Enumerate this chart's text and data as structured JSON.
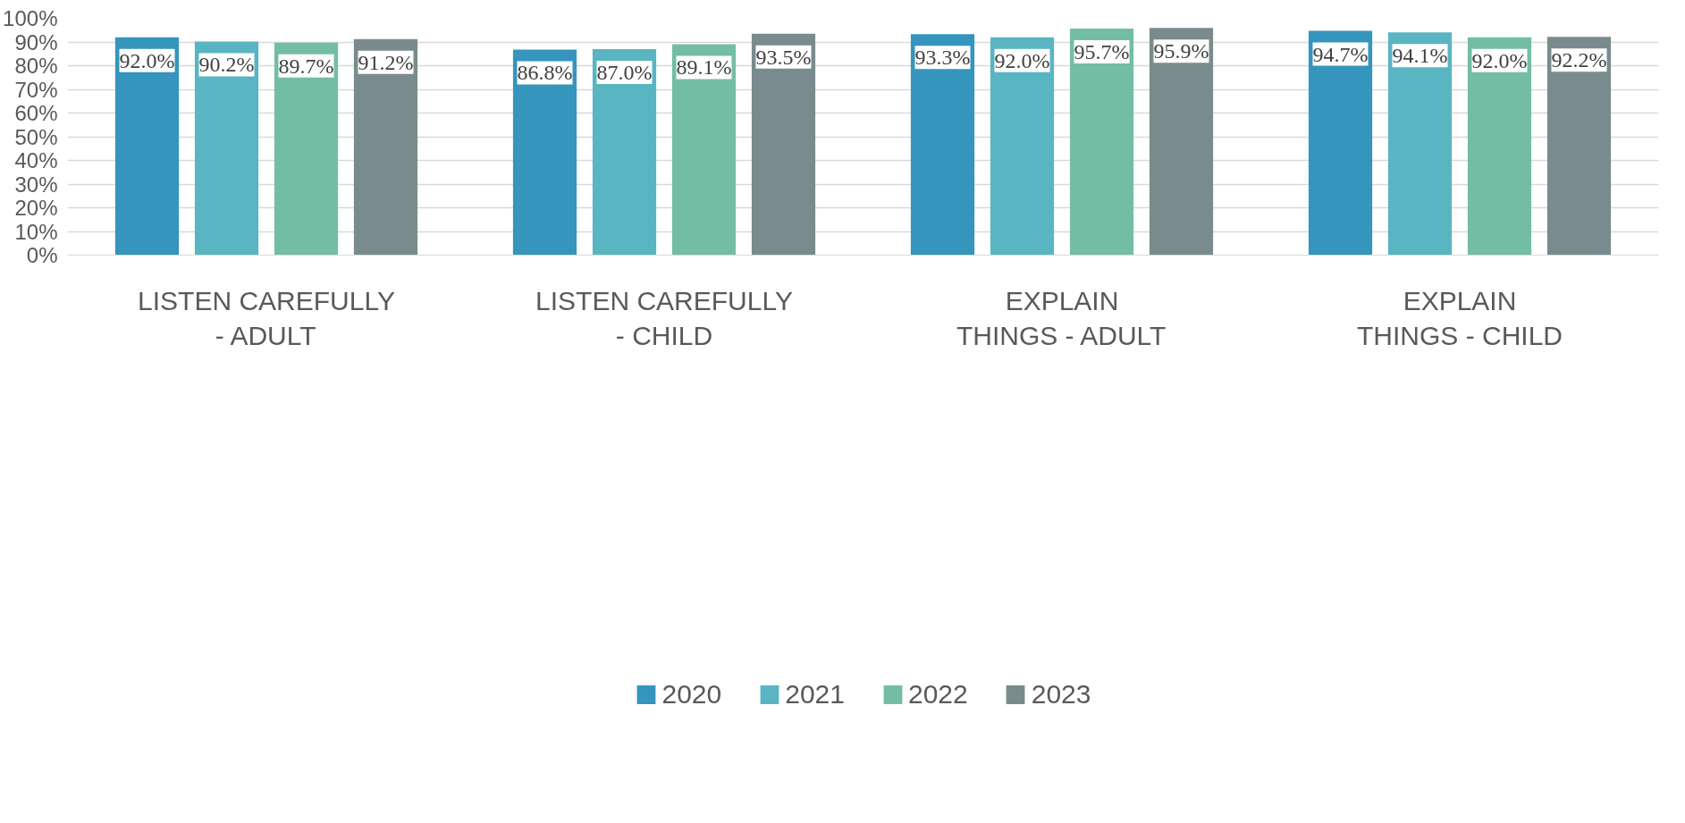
{
  "chart_data": {
    "type": "bar",
    "categories": [
      "LISTEN CAREFULLY - ADULT",
      "LISTEN CAREFULLY - CHILD",
      "EXPLAIN THINGS - ADULT",
      "EXPLAIN THINGS - CHILD"
    ],
    "series": [
      {
        "name": "2020",
        "color": "#3595bc",
        "values": [
          92.0,
          86.8,
          93.3,
          94.7
        ],
        "value_labels": [
          "92.0%",
          "86.8%",
          "93.3%",
          "94.7%"
        ]
      },
      {
        "name": "2021",
        "color": "#59b5c1",
        "values": [
          90.2,
          87.0,
          92.0,
          94.1
        ],
        "value_labels": [
          "90.2%",
          "87.0%",
          "92.0%",
          "94.1%"
        ]
      },
      {
        "name": "2022",
        "color": "#74bda5",
        "values": [
          89.7,
          89.1,
          95.7,
          92.0
        ],
        "value_labels": [
          "89.7%",
          "89.1%",
          "95.7%",
          "92.0%"
        ]
      },
      {
        "name": "2023",
        "color": "#798b8d",
        "values": [
          91.2,
          93.5,
          95.9,
          92.2
        ],
        "value_labels": [
          "91.2%",
          "93.5%",
          "95.9%",
          "92.2%"
        ]
      }
    ],
    "ylim": [
      0,
      100
    ],
    "yticks": [
      {
        "value": 0,
        "label": "0%"
      },
      {
        "value": 10,
        "label": "10%"
      },
      {
        "value": 20,
        "label": "20%"
      },
      {
        "value": 30,
        "label": "30%"
      },
      {
        "value": 40,
        "label": "40%"
      },
      {
        "value": 50,
        "label": "50%"
      },
      {
        "value": 60,
        "label": "60%"
      },
      {
        "value": 70,
        "label": "70%"
      },
      {
        "value": 80,
        "label": "80%"
      },
      {
        "value": 90,
        "label": "90%"
      },
      {
        "value": 100,
        "label": "100%"
      }
    ],
    "grid": "y",
    "legend": "bottom"
  }
}
